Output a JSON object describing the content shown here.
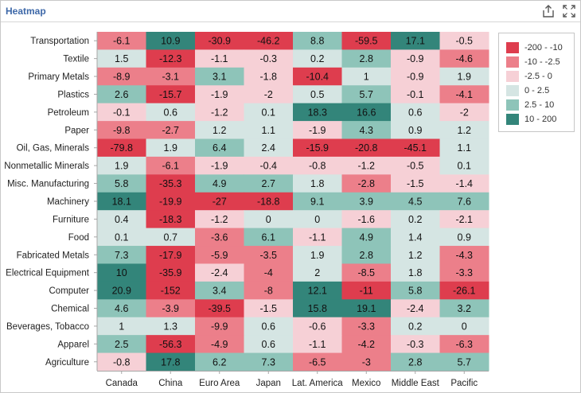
{
  "panel": {
    "title": "Heatmap"
  },
  "toolbar": {
    "export_icon": "export-icon",
    "fullscreen_icon": "fullscreen-icon"
  },
  "legend": {
    "items": [
      {
        "label": "-200 - -10",
        "color": "#de3d4e"
      },
      {
        "label": "-10 - -2.5",
        "color": "#ec7f8a"
      },
      {
        "label": "-2.5 - 0",
        "color": "#f6d0d6"
      },
      {
        "label": "0 - 2.5",
        "color": "#d5e5e3"
      },
      {
        "label": "2.5 - 10",
        "color": "#8ec4b9"
      },
      {
        "label": "10 - 200",
        "color": "#33857a"
      }
    ]
  },
  "chart_data": {
    "type": "heatmap",
    "title": "Heatmap",
    "x_categories": [
      "Canada",
      "China",
      "Euro Area",
      "Japan",
      "Lat. America",
      "Mexico",
      "Middle East",
      "Pacific"
    ],
    "y_categories": [
      "Transportation",
      "Textile",
      "Primary Metals",
      "Plastics",
      "Petroleum",
      "Paper",
      "Oil, Gas, Minerals",
      "Nonmetallic Minerals",
      "Misc. Manufacturing",
      "Machinery",
      "Furniture",
      "Food",
      "Fabricated Metals",
      "Electrical Equipment",
      "Computer",
      "Chemical",
      "Beverages, Tobacco",
      "Apparel",
      "Agriculture"
    ],
    "values": [
      [
        -6.1,
        10.9,
        -30.9,
        -46.2,
        8.8,
        -59.5,
        17.1,
        -0.5
      ],
      [
        1.5,
        -12.3,
        -1.1,
        -0.3,
        0.2,
        2.8,
        -0.9,
        -4.6
      ],
      [
        -8.9,
        -3.1,
        3.1,
        -1.8,
        -10.4,
        1,
        -0.9,
        1.9
      ],
      [
        2.6,
        -15.7,
        -1.9,
        -2,
        0.5,
        5.7,
        -0.1,
        -4.1
      ],
      [
        -0.1,
        0.6,
        -1.2,
        0.1,
        18.3,
        16.6,
        0.6,
        -2
      ],
      [
        -9.8,
        -2.7,
        1.2,
        1.1,
        -1.9,
        4.3,
        0.9,
        1.2
      ],
      [
        -79.8,
        1.9,
        6.4,
        2.4,
        -15.9,
        -20.8,
        -45.1,
        1.1
      ],
      [
        1.9,
        -6.1,
        -1.9,
        -0.4,
        -0.8,
        -1.2,
        -0.5,
        0.1
      ],
      [
        5.8,
        -35.3,
        4.9,
        2.7,
        1.8,
        -2.8,
        -1.5,
        -1.4
      ],
      [
        18.1,
        -19.9,
        -27,
        -18.8,
        9.1,
        3.9,
        4.5,
        7.6
      ],
      [
        0.4,
        -18.3,
        -1.2,
        0,
        0,
        -1.6,
        0.2,
        -2.1
      ],
      [
        0.1,
        0.7,
        -3.6,
        6.1,
        -1.1,
        4.9,
        1.4,
        0.9
      ],
      [
        7.3,
        -17.9,
        -5.9,
        -3.5,
        1.9,
        2.8,
        1.2,
        -4.3
      ],
      [
        10,
        -35.9,
        -2.4,
        -4,
        2,
        -8.5,
        1.8,
        -3.3
      ],
      [
        20.9,
        -152,
        3.4,
        -8,
        12.1,
        -11,
        5.8,
        -26.1
      ],
      [
        4.6,
        -3.9,
        -39.5,
        -1.5,
        15.8,
        19.1,
        -2.4,
        3.2
      ],
      [
        1,
        1.3,
        -9.9,
        0.6,
        -0.6,
        -3.3,
        0.2,
        0
      ],
      [
        2.5,
        -56.3,
        -4.9,
        0.6,
        -1.1,
        -4.2,
        -0.3,
        -6.3
      ],
      [
        -0.8,
        17.8,
        6.2,
        7.3,
        -6.5,
        -3,
        2.8,
        5.7
      ]
    ],
    "color_scale": [
      {
        "min": -200,
        "max": -10,
        "color": "#de3d4e"
      },
      {
        "min": -10,
        "max": -2.5,
        "color": "#ec7f8a"
      },
      {
        "min": -2.5,
        "max": 0,
        "color": "#f6d0d6"
      },
      {
        "min": 0,
        "max": 2.5,
        "color": "#d5e5e3"
      },
      {
        "min": 2.5,
        "max": 10,
        "color": "#8ec4b9"
      },
      {
        "min": 10,
        "max": 200,
        "color": "#33857a"
      }
    ],
    "legend_position": "top-right"
  }
}
